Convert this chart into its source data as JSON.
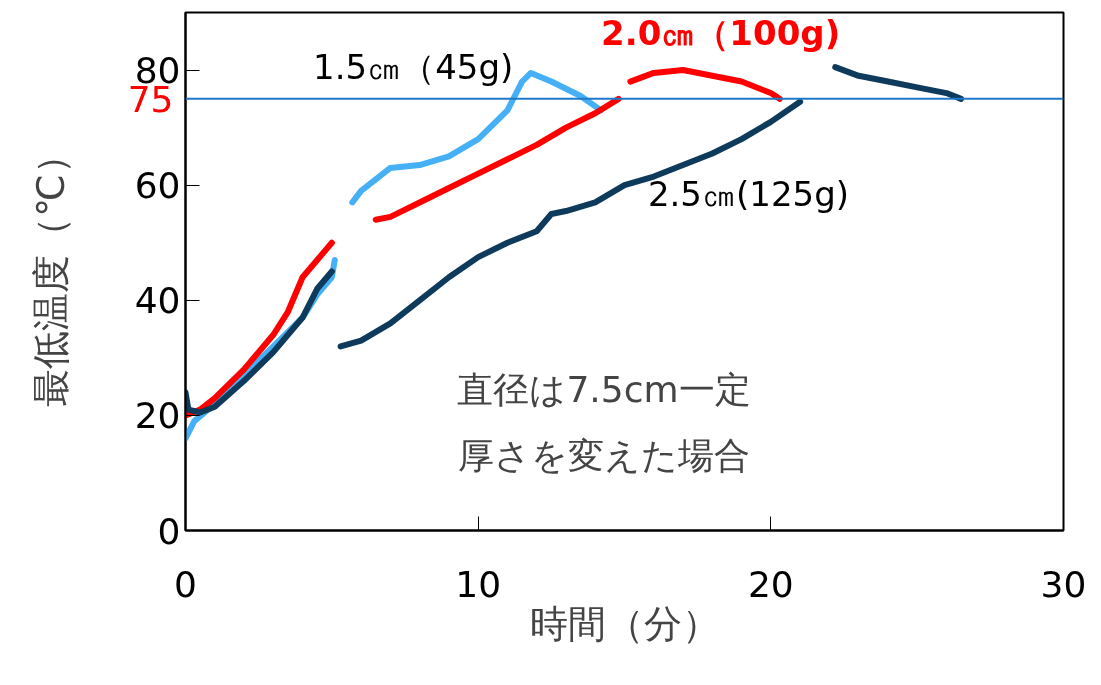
{
  "chart_data": {
    "type": "line",
    "xlabel": "時間（分）",
    "ylabel": "最低温度（℃）",
    "xlim": [
      0,
      30
    ],
    "ylim": [
      0,
      90
    ],
    "xticks": [
      0,
      10,
      20,
      30
    ],
    "yticks": [
      0,
      20,
      40,
      60,
      80
    ],
    "grid": false,
    "marker": "none",
    "line_style": "solid",
    "series": [
      {
        "name": "1.5㎝（45g)",
        "color": "#45b0f5",
        "x": [
          0,
          0.3,
          1,
          2,
          3,
          4,
          4.5,
          5,
          5.1,
          5.4,
          5.7,
          6,
          6.5,
          7,
          8,
          9,
          10,
          11,
          11.2,
          11.5,
          11.8,
          12.5,
          13.5,
          14.2
        ],
        "values": [
          16,
          19,
          22,
          27,
          32,
          37,
          41,
          44,
          47,
          null,
          57,
          59,
          61,
          63,
          63.5,
          65,
          68,
          73,
          75,
          78,
          79.5,
          78,
          75.5,
          73
        ]
      },
      {
        "name": "2.0㎝（100g)",
        "color": "#ff0000",
        "x": [
          0,
          0.5,
          1,
          2,
          3,
          3.5,
          4,
          4.5,
          5,
          5.7,
          6.5,
          7,
          8,
          9,
          10,
          11,
          12,
          13,
          14,
          14.8,
          15,
          15.2,
          16,
          17,
          18,
          19,
          20,
          20.3
        ],
        "values": [
          20,
          21,
          23,
          28,
          34,
          38,
          44,
          47,
          50,
          null,
          54,
          54.5,
          57,
          59.5,
          62,
          64.5,
          67,
          70,
          72.5,
          75,
          null,
          78,
          79.5,
          80,
          79,
          78,
          76,
          75
        ]
      },
      {
        "name": "2.5㎝(125g)",
        "color": "#0e3a5c",
        "x": [
          0,
          0.1,
          0.5,
          1,
          2,
          3,
          4,
          4.5,
          5,
          5.2,
          5.3,
          6,
          7,
          8,
          9,
          10,
          11,
          12,
          12.5,
          13,
          14,
          15,
          16,
          17,
          18,
          19,
          20,
          21,
          21.5,
          22.2,
          23,
          24,
          25,
          26,
          26.5
        ],
        "values": [
          24,
          21,
          20.5,
          21.5,
          26,
          31,
          37,
          42,
          45,
          null,
          32,
          33,
          36,
          40,
          44,
          47.5,
          50,
          52,
          55,
          55.5,
          57,
          60,
          61.5,
          63.5,
          65.5,
          68,
          71,
          74.5,
          null,
          80.5,
          79,
          78,
          77,
          76,
          75
        ]
      }
    ],
    "ref_lines": [
      {
        "axis": "y",
        "value": 75,
        "label": "75",
        "color": "#1f78c8"
      }
    ],
    "annotations": [
      "直径は7.5cm一定",
      "厚さを変えた場合"
    ]
  }
}
